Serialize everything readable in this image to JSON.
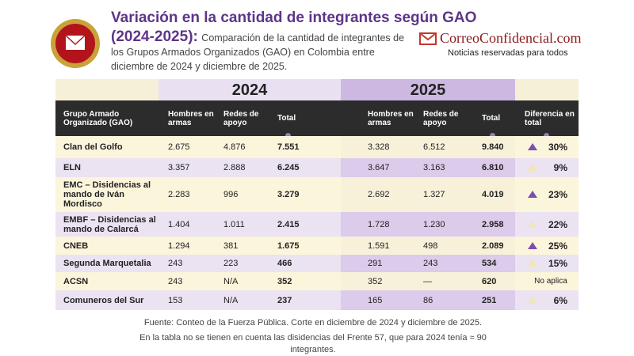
{
  "header": {
    "title": "Variación en la cantidad de integrantes según GAO",
    "title_years": "(2024-2025):",
    "subtitle": "Comparación de la cantidad de integrantes de los Grupos Armados Organizados (GAO) en Colombia entre diciembre de 2024 y diciembre de 2025.",
    "brand": "CorreoConfidencial.com",
    "tagline": "Noticias reservadas para todos"
  },
  "table": {
    "years": [
      "2024",
      "2025"
    ],
    "columns": [
      "Grupo Armado Organizado (GAO)",
      "Hombres en armas",
      "Redes de apoyo",
      "Total",
      "Hombres en armas",
      "Redes de apoyo",
      "Total",
      "Diferencia en total"
    ],
    "rows": [
      [
        "Clan del Golfo",
        "2.675",
        "4.876",
        "7.551",
        "3.328",
        "6.512",
        "9.840",
        "30%"
      ],
      [
        "ELN",
        "3.357",
        "2.888",
        "6.245",
        "3.647",
        "3.163",
        "6.810",
        "9%"
      ],
      [
        "EMC – Disidencias al mando de Iván Mordisco",
        "2.283",
        "996",
        "3.279",
        "2.692",
        "1.327",
        "4.019",
        "23%"
      ],
      [
        "EMBF – Disidencias al mando de Calarcá",
        "1.404",
        "1.011",
        "2.415",
        "1.728",
        "1.230",
        "2.958",
        "22%"
      ],
      [
        "CNEB",
        "1.294",
        "381",
        "1.675",
        "1.591",
        "498",
        "2.089",
        "25%"
      ],
      [
        "Segunda Marquetalia",
        "243",
        "223",
        "466",
        "291",
        "243",
        "534",
        "15%"
      ],
      [
        "ACSN",
        "243",
        "N/A",
        "352",
        "352",
        "—",
        "620",
        "No aplica"
      ],
      [
        "Comuneros del Sur",
        "153",
        "N/A",
        "237",
        "165",
        "86",
        "251",
        "6%"
      ]
    ]
  },
  "footer": {
    "source": "Fuente: Conteo de la Fuerza Pública. Corte en diciembre de 2024 y diciembre de 2025.",
    "note": "En la tabla no se tienen en cuenta las disidencias del Frente 57, que para 2024 tenía ≈ 90 integrantes."
  }
}
